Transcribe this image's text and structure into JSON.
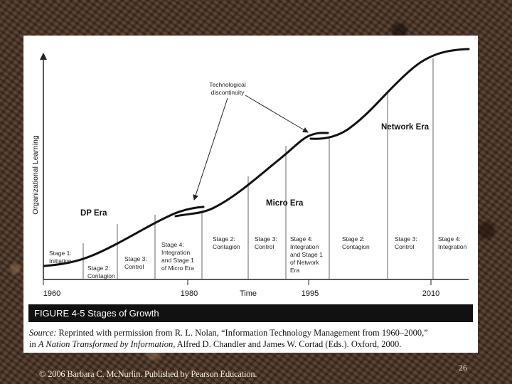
{
  "figure": {
    "y_axis_label": "Organizational Learning",
    "x_axis_label": "Time",
    "x_ticks": [
      "1960",
      "1980",
      "1995",
      "2010"
    ],
    "eras": [
      "DP Era",
      "Micro Era",
      "Network Era"
    ],
    "annotation": {
      "line1": "Technological",
      "line2": "discontinuity"
    },
    "stages": [
      [
        "Stage 1:",
        "Initiation"
      ],
      [
        "Stage 2:",
        "Contagion"
      ],
      [
        "Stage 3:",
        "Control"
      ],
      [
        "Stage 4:",
        "Integration",
        "and Stage 1",
        "of Micro Era"
      ],
      [
        "Stage 2:",
        "Contagion"
      ],
      [
        "Stage 3:",
        "Control"
      ],
      [
        "Stage 4:",
        "Integration",
        "and Stage 1",
        "of Network",
        "Era"
      ],
      [
        "Stage 2:",
        "Contagion"
      ],
      [
        "Stage 3:",
        "Control"
      ],
      [
        "Stage 4:",
        "Integration"
      ]
    ]
  },
  "caption": {
    "number": "FIGURE 4-5",
    "title": "Stages of Growth"
  },
  "source": {
    "label": "Source:",
    "text1": "Reprinted with permission from R. L. Nolan, “Information Technology Management from 1960–2000,”",
    "in": "in",
    "book": "A Nation Transformed by Information,",
    "text2": "Alfred D. Chandler and James W. Cortad (Eds.). Oxford, 2000."
  },
  "footer": {
    "copyright": "© 2006 Barbara C. McNurlin. Published by Pearson Education.",
    "slide_number": "26"
  }
}
